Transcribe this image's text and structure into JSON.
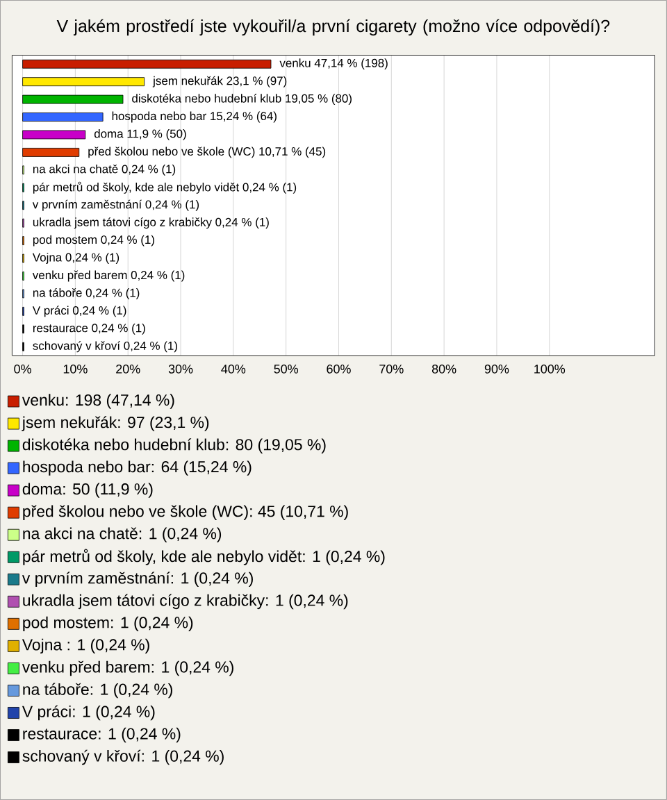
{
  "chart_data": {
    "type": "bar",
    "orientation": "horizontal",
    "title": "V jakém prostředí jste vykouřil/a první cigarety (možno více odpovědí)?",
    "categories": [
      null,
      null,
      null,
      null,
      null,
      null,
      null,
      null,
      null,
      null,
      null,
      null,
      null,
      null,
      null,
      null,
      null
    ],
    "values": [
      47.14,
      23.1,
      19.05,
      15.24,
      11.9,
      10.71,
      0.24,
      0.24,
      0.24,
      0.24,
      0.24,
      0.24,
      0.24,
      0.24,
      0.24,
      0.24,
      0.24
    ],
    "value_labels": [
      "venku 47,14 % (198)",
      "jsem nekuřák 23,1 % (97)",
      "diskotéka nebo hudební klub 19,05 % (80)",
      "hospoda nebo bar 15,24 % (64)",
      "doma 11,9 % (50)",
      "před školou nebo ve škole (WC) 10,71 % (45)",
      "na akci na chatě 0,24 % (1)",
      "pár metrů od školy, kde ale nebylo vidět 0,24 % (1)",
      "v prvním zaměstnání 0,24 % (1)",
      "ukradla jsem tátovi cígo z krabičky 0,24 % (1)",
      "pod mostem 0,24 % (1)",
      "Vojna  0,24 % (1)",
      "venku před barem 0,24 % (1)",
      "na táboře 0,24 % (1)",
      "V práci 0,24 % (1)",
      "restaurace 0,24 % (1)",
      "schovaný v křoví 0,24 % (1)"
    ],
    "colors": [
      "#c81e00",
      "#ffe800",
      "#00b400",
      "#3366ff",
      "#c800c8",
      "#e03c00",
      "#ccff88",
      "#009966",
      "#1a7a8a",
      "#b050b0",
      "#e07000",
      "#e0b000",
      "#44ee44",
      "#6699dd",
      "#2244aa",
      "#000000",
      "#000000"
    ],
    "xlim": [
      -2,
      120
    ],
    "xticks": [
      {
        "value": 0,
        "label": "0%"
      },
      {
        "value": 10,
        "label": "10%"
      },
      {
        "value": 20,
        "label": "20%"
      },
      {
        "value": 30,
        "label": "30%"
      },
      {
        "value": 40,
        "label": "40%"
      },
      {
        "value": 50,
        "label": "50%"
      },
      {
        "value": 60,
        "label": "60%"
      },
      {
        "value": 70,
        "label": "70%"
      },
      {
        "value": 80,
        "label": "80%"
      },
      {
        "value": 90,
        "label": "90%"
      },
      {
        "value": 100,
        "label": "100%"
      }
    ],
    "grid": "x",
    "tick_labels": "x",
    "annotations": [
      "venku: 198 (47,14 %)",
      "jsem nekuřák: 97 (23,1 %)",
      "diskotéka nebo hudební klub: 80 (19,05 %)",
      "hospoda nebo bar: 64 (15,24 %)",
      "doma: 50 (11,9 %)",
      "před školou nebo ve škole (WC): 45 (10,71 %)",
      "na akci na chatě: 1 (0,24 %)",
      "pár metrů od školy, kde ale nebylo vidět: 1 (0,24 %)",
      "v prvním zaměstnání: 1 (0,24 %)",
      "ukradla jsem tátovi cígo z krabičky: 1 (0,24 %)",
      "pod mostem: 1 (0,24 %)",
      "Vojna : 1 (0,24 %)",
      "venku před barem: 1 (0,24 %)",
      "na táboře: 1 (0,24 %)",
      "V práci: 1 (0,24 %)",
      "restaurace: 1 (0,24 %)",
      "schovaný v křoví: 1 (0,24 %)"
    ]
  }
}
